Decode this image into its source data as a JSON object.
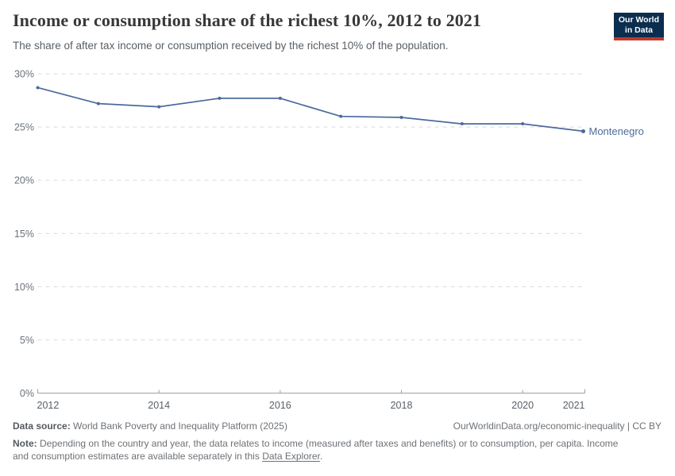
{
  "header": {
    "title": "Income or consumption share of the richest 10%, 2012 to 2021",
    "subtitle": "The share of after tax income or consumption received by the richest 10% of the population.",
    "logo": {
      "line1": "Our World",
      "line2": "in Data",
      "bg_color": "#0b2d4f",
      "accent_color": "#c0392b"
    }
  },
  "chart_data": {
    "type": "line",
    "title": "Income or consumption share of the richest 10%, 2012 to 2021",
    "x": [
      2012,
      2013,
      2014,
      2015,
      2016,
      2017,
      2018,
      2019,
      2020,
      2021
    ],
    "series": [
      {
        "name": "Montenegro",
        "color": "#4c6a9c",
        "values": [
          28.7,
          27.2,
          26.9,
          27.7,
          27.7,
          26.0,
          25.9,
          25.3,
          25.3,
          24.6
        ]
      }
    ],
    "xlim": [
      2012,
      2021
    ],
    "ylim": [
      0,
      30
    ],
    "x_ticks": [
      2012,
      2014,
      2016,
      2018,
      2020,
      2021
    ],
    "y_ticks": [
      0,
      5,
      10,
      15,
      20,
      25,
      30
    ],
    "y_tick_suffix": "%",
    "grid": "horizontal-dashed",
    "legend": "series-end-label"
  },
  "footer": {
    "datasource_label": "Data source:",
    "datasource_text": " World Bank Poverty and Inequality Platform (2025)",
    "attribution": "OurWorldinData.org/economic-inequality | CC BY",
    "note_label": "Note:",
    "note_before_link": " Depending on the country and year, the data relates to income (measured after taxes and benefits) or to consumption, per capita. Income and consumption estimates are available separately in this ",
    "note_link": "Data Explorer",
    "note_after_link": "."
  }
}
